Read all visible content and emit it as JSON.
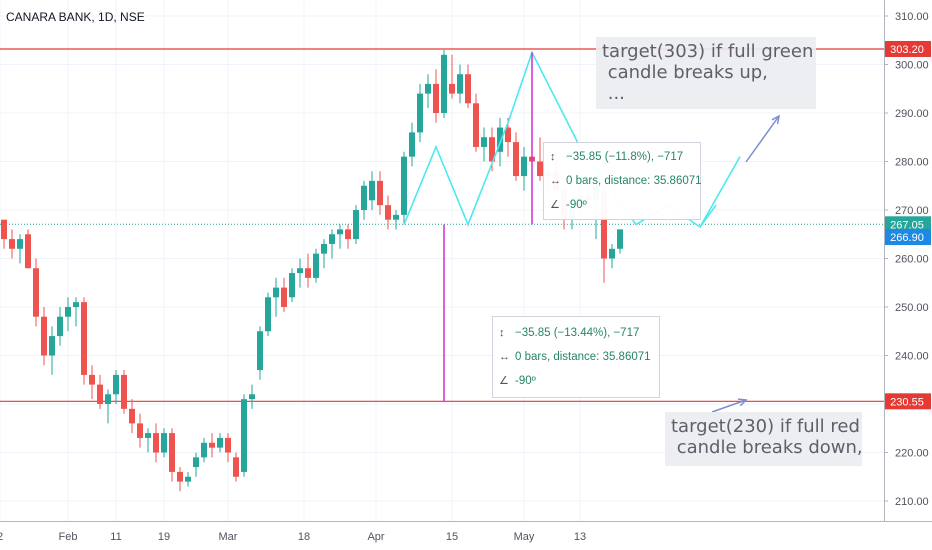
{
  "title": "CANARA BANK, 1D, NSE",
  "annotations": {
    "upper": "target(303) if full green\n candle breaks up,\n ...",
    "lower": "target(230) if full red\n candle breaks down,"
  },
  "measure_main": {
    "line1": "−35.85 (−13.44%), −717",
    "line2": "0 bars, distance: 35.86071",
    "line3": "-90º"
  },
  "measure_small": {
    "line1": "−35.85 (−11.8%), −717",
    "line2": "0 bars, distance: 35.86071",
    "line3": "-90º"
  },
  "price_labels": {
    "resistance": "303.20",
    "support": "230.55",
    "last": "267.05",
    "prev": "266.90"
  },
  "colors": {
    "up": "#26a69a",
    "down": "#ef5350",
    "level_line": "#e53935",
    "pattern": "#4de8f0",
    "measure": "#d42bd4",
    "arrow": "#7b8fd0",
    "last_price": "#26a69a",
    "prev_price": "#1e88e5"
  },
  "chart_data": {
    "type": "candlestick",
    "title": "CANARA BANK, 1D, NSE",
    "y_ticks": [
      "210.00",
      "220.00",
      "230.00",
      "240.00",
      "250.00",
      "260.00",
      "270.00",
      "280.00",
      "290.00",
      "300.00",
      "310.00"
    ],
    "x_ticks": [
      {
        "label": "2",
        "i": 0
      },
      {
        "label": "Feb",
        "i": 8.5
      },
      {
        "label": "11",
        "i": 14.5
      },
      {
        "label": "19",
        "i": 20.5
      },
      {
        "label": "Mar",
        "i": 28.5
      },
      {
        "label": "18",
        "i": 38
      },
      {
        "label": "Apr",
        "i": 47
      },
      {
        "label": "15",
        "i": 56.5
      },
      {
        "label": "May",
        "i": 65.5
      },
      {
        "label": "13",
        "i": 72.5
      }
    ],
    "ylim": [
      203,
      313
    ],
    "levels": {
      "resistance": 303.2,
      "support": 230.55,
      "dotted": 267.05
    },
    "candles": [
      [
        268,
        268,
        262,
        264
      ],
      [
        264,
        266,
        260,
        262
      ],
      [
        262,
        265,
        259,
        264
      ],
      [
        265,
        266,
        258,
        258
      ],
      [
        258,
        260,
        246,
        248
      ],
      [
        248,
        250,
        238,
        240
      ],
      [
        240,
        246,
        236,
        244
      ],
      [
        244,
        250,
        242,
        248
      ],
      [
        248,
        252,
        245,
        250
      ],
      [
        250,
        252,
        246,
        251
      ],
      [
        251,
        252,
        234,
        236
      ],
      [
        236,
        238,
        231,
        234
      ],
      [
        234,
        236,
        229,
        230
      ],
      [
        230,
        233,
        226,
        232
      ],
      [
        232,
        237,
        230,
        236
      ],
      [
        236,
        237,
        228,
        229
      ],
      [
        229,
        231,
        224,
        226
      ],
      [
        226,
        228,
        221,
        223
      ],
      [
        223,
        225,
        220,
        224
      ],
      [
        224,
        226,
        218,
        220
      ],
      [
        220,
        225,
        219,
        224
      ],
      [
        224,
        225,
        214,
        216
      ],
      [
        216,
        217,
        212,
        214
      ],
      [
        214,
        216,
        213,
        215
      ],
      [
        217,
        220,
        215,
        219
      ],
      [
        219,
        223,
        218,
        222
      ],
      [
        222,
        224,
        219,
        221
      ],
      [
        221,
        224,
        220,
        223
      ],
      [
        223,
        224,
        218,
        220
      ],
      [
        219,
        220,
        214,
        215
      ],
      [
        216,
        232,
        215,
        231
      ],
      [
        231,
        234,
        229,
        232
      ],
      [
        237,
        246,
        235,
        245
      ],
      [
        245,
        253,
        244,
        252
      ],
      [
        252,
        256,
        248,
        254
      ],
      [
        254,
        256,
        249,
        250
      ],
      [
        252,
        258,
        251,
        257
      ],
      [
        257,
        260,
        254,
        258
      ],
      [
        258,
        261,
        254,
        256
      ],
      [
        256,
        262,
        255,
        261
      ],
      [
        261,
        264,
        258,
        263
      ],
      [
        263,
        266,
        260,
        265
      ],
      [
        265,
        267,
        262,
        266
      ],
      [
        266,
        267,
        262,
        264
      ],
      [
        264,
        271,
        263,
        270
      ],
      [
        270,
        276,
        268,
        275
      ],
      [
        272,
        278,
        270,
        276
      ],
      [
        276,
        278,
        269,
        271
      ],
      [
        271,
        273,
        266,
        268
      ],
      [
        268,
        270,
        266,
        269
      ],
      [
        269,
        282,
        267,
        281
      ],
      [
        281,
        288,
        279,
        286
      ],
      [
        286,
        296,
        284,
        294
      ],
      [
        294,
        298,
        291,
        296
      ],
      [
        296,
        299,
        288,
        290
      ],
      [
        290,
        303,
        289,
        302
      ],
      [
        296,
        302,
        293,
        294
      ],
      [
        294,
        300,
        292,
        298
      ],
      [
        298,
        300,
        291,
        292
      ],
      [
        292,
        294,
        282,
        283
      ],
      [
        283,
        287,
        280,
        285
      ],
      [
        285,
        287,
        278,
        280
      ],
      [
        282,
        289,
        279,
        287
      ],
      [
        287,
        289,
        281,
        284
      ],
      [
        284,
        286,
        276,
        277
      ],
      [
        277,
        283,
        274,
        281
      ],
      [
        281,
        284,
        278,
        280
      ],
      [
        280,
        285,
        276,
        277
      ],
      [
        277,
        281,
        273,
        278
      ],
      [
        278,
        282,
        273,
        274
      ],
      [
        274,
        276,
        266,
        268
      ],
      [
        268,
        272,
        266,
        271
      ],
      [
        271,
        276,
        269,
        273
      ],
      [
        273,
        275,
        270,
        272
      ],
      [
        272,
        276,
        264,
        275
      ],
      [
        274,
        275,
        255,
        260
      ],
      [
        260,
        263,
        258,
        262
      ],
      [
        262,
        266,
        261,
        266
      ]
    ]
  }
}
